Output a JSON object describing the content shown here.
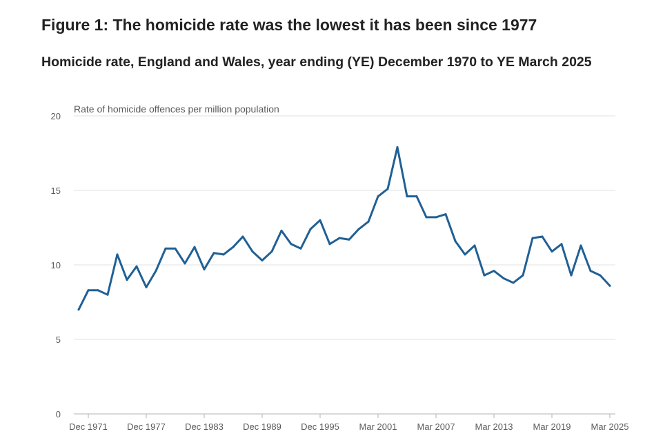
{
  "title": "Figure 1: The homicide rate was the lowest it has been since 1977",
  "subtitle": "Homicide rate, England and Wales, year ending (YE) December 1970 to YE March 2025",
  "chart_data": {
    "type": "line",
    "ylabel": "Rate of homicide offences per million population",
    "ylim": [
      0,
      20
    ],
    "yticks": [
      0,
      5,
      10,
      15,
      20
    ],
    "grid": true,
    "x_tick_labels": [
      {
        "index": 1,
        "label": "Dec 1971"
      },
      {
        "index": 7,
        "label": "Dec 1977"
      },
      {
        "index": 13,
        "label": "Dec 1983"
      },
      {
        "index": 19,
        "label": "Dec 1989"
      },
      {
        "index": 25,
        "label": "Dec 1995"
      },
      {
        "index": 31,
        "label": "Mar 2001"
      },
      {
        "index": 37,
        "label": "Mar 2007"
      },
      {
        "index": 43,
        "label": "Mar 2013"
      },
      {
        "index": 49,
        "label": "Mar 2019"
      },
      {
        "index": 55,
        "label": "Mar 2025"
      }
    ],
    "series": [
      {
        "name": "Homicide rate",
        "color": "#206095",
        "values": [
          7.0,
          8.3,
          8.3,
          8.0,
          10.7,
          9.0,
          9.9,
          8.5,
          9.6,
          11.1,
          11.1,
          10.1,
          11.2,
          9.7,
          10.8,
          10.7,
          11.2,
          11.9,
          10.9,
          10.3,
          10.9,
          12.3,
          11.4,
          11.1,
          12.4,
          13.0,
          11.4,
          11.8,
          11.7,
          12.4,
          12.9,
          14.6,
          15.1,
          17.9,
          14.6,
          14.6,
          13.2,
          13.2,
          13.4,
          11.6,
          10.7,
          11.3,
          9.3,
          9.6,
          9.1,
          8.8,
          9.3,
          11.8,
          11.9,
          10.9,
          11.4,
          9.3,
          11.3,
          9.6,
          9.3,
          8.6
        ]
      }
    ]
  }
}
